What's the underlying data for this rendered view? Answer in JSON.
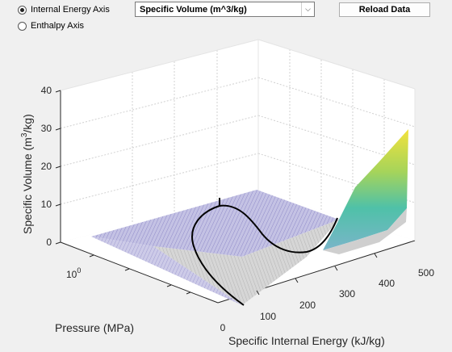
{
  "controls": {
    "radio_internal_energy": "Internal Energy Axis",
    "radio_enthalpy": "Enthalpy Axis",
    "selected_axis": "internal_energy",
    "dropdown_value": "Specific Volume (m^3/kg)",
    "reload_button": "Reload Data"
  },
  "chart_data": {
    "type": "surface",
    "zlabel_base": "Specific Volume (m",
    "zlabel_sup": "3",
    "zlabel_end": "/kg)",
    "xlabel": "Specific Internal Energy (kJ/kg)",
    "ylabel": "Pressure (MPa)",
    "z_ticks": [
      "0",
      "10",
      "20",
      "30",
      "40"
    ],
    "x_ticks": [
      "0",
      "100",
      "200",
      "300",
      "400",
      "500"
    ],
    "y_tick_base": "10",
    "y_tick_exp": "0",
    "zlim": [
      0,
      40
    ],
    "xlim": [
      0,
      500
    ],
    "colors": {
      "surface_low": "#6a5acd",
      "surface_high": "#f0e442",
      "saturation_dome": "#000000"
    }
  }
}
